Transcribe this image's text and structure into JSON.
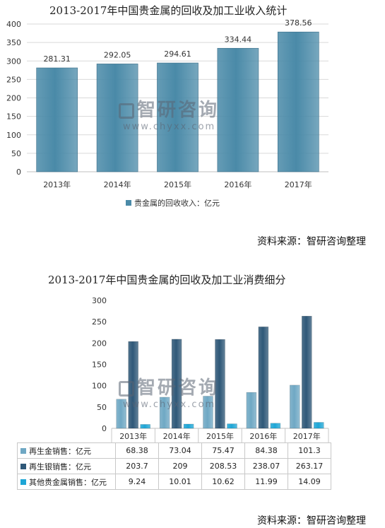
{
  "chart_data": [
    {
      "type": "bar",
      "title": "2013-2017年中国贵金属的回收及加工业收入统计",
      "categories": [
        "2013年",
        "2014年",
        "2015年",
        "2016年",
        "2017年"
      ],
      "series": [
        {
          "name": "贵金属的回收收入：亿元",
          "values": [
            281.31,
            292.05,
            294.61,
            334.44,
            378.56
          ]
        }
      ],
      "data_labels": [
        "281.31",
        "292.05",
        "294.61",
        "334.44",
        "378.56"
      ],
      "yticks": [
        "0",
        "50",
        "100",
        "150",
        "200",
        "250",
        "300",
        "350",
        "400"
      ],
      "ylim": [
        0,
        400
      ],
      "grid": true,
      "legend": "bottom",
      "color": "#4a8aa8",
      "source": "资料来源：智研咨询整理"
    },
    {
      "type": "bar",
      "title": "2013-2017年中国贵金属的回收及加工业消费细分",
      "categories": [
        "2013年",
        "2014年",
        "2015年",
        "2016年",
        "2017年"
      ],
      "series": [
        {
          "name": "再生金销售：亿元",
          "values": [
            68.38,
            73.04,
            75.47,
            84.38,
            101.3
          ],
          "labels": [
            "68.38",
            "73.04",
            "75.47",
            "84.38",
            "101.3"
          ],
          "color": "#6fa8c4"
        },
        {
          "name": "再生银销售：亿元",
          "values": [
            203.7,
            209,
            208.53,
            238.07,
            263.17
          ],
          "labels": [
            "203.7",
            "209",
            "208.53",
            "238.07",
            "263.17"
          ],
          "color": "#2f5878"
        },
        {
          "name": "其他贵金属销售：亿元",
          "values": [
            9.24,
            10.01,
            10.62,
            11.99,
            14.09
          ],
          "labels": [
            "9.24",
            "10.01",
            "10.62",
            "11.99",
            "14.09"
          ],
          "color": "#1ea6d6"
        }
      ],
      "yticks": [
        "0",
        "50",
        "100",
        "150",
        "200",
        "250",
        "300"
      ],
      "ylim": [
        0,
        300
      ],
      "grid": false,
      "legend": "data-table",
      "source": "资料来源：智研咨询整理"
    }
  ],
  "watermark": {
    "name": "智研咨询",
    "url": "www.chyxx.com"
  }
}
